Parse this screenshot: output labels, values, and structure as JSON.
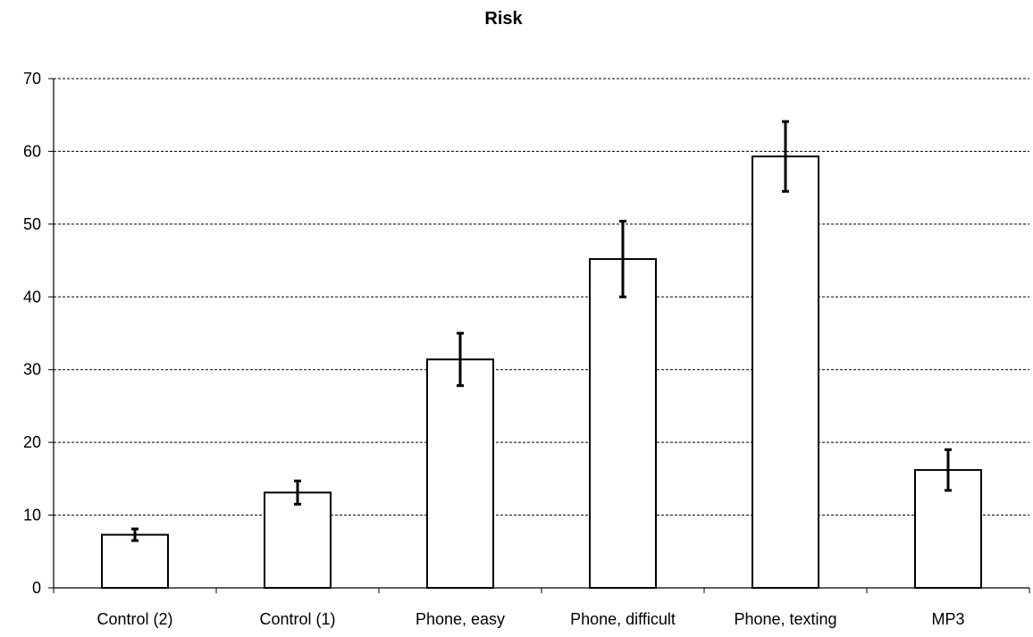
{
  "chart_data": {
    "type": "bar",
    "title": "Risk",
    "xlabel": "",
    "ylabel": "",
    "categories": [
      "Control (2)",
      "Control (1)",
      "Phone, easy",
      "Phone, difficult",
      "Phone, texting",
      "MP3"
    ],
    "values": [
      7.3,
      13.1,
      31.4,
      45.2,
      59.3,
      16.2
    ],
    "errors": [
      0.8,
      1.6,
      3.6,
      5.2,
      4.8,
      2.8
    ],
    "ylim": [
      0,
      70
    ],
    "yticks": [
      0,
      10,
      20,
      30,
      40,
      50,
      60,
      70
    ],
    "grid": true,
    "colors": {
      "bar_fill": "#ffffff",
      "bar_stroke": "#000000",
      "error": "#000000",
      "grid": "#000000"
    }
  }
}
